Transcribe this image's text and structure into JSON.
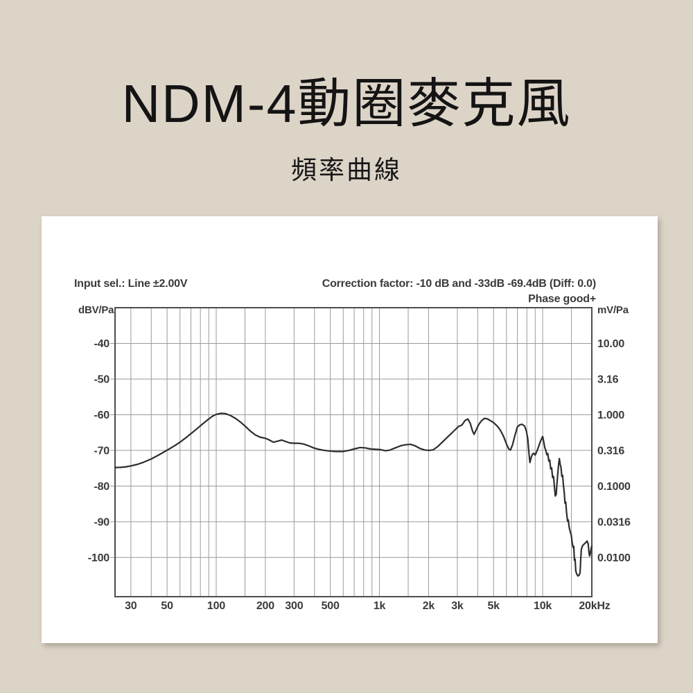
{
  "page": {
    "title": "NDM-4動圈麥克風",
    "subtitle": "頻率曲線",
    "background_color": "#ddd4c8",
    "card_background": "#ffffff"
  },
  "chart_data": {
    "type": "line",
    "header": {
      "input_sel": "Input sel.: Line ±2.00V",
      "correction": "Correction factor: -10 dB  and -33dB -69.4dB (Diff: 0.0)",
      "phase": "Phase good+"
    },
    "x_axis": {
      "scale": "log",
      "range_hz": [
        24,
        20000
      ],
      "gridlines_hz": [
        30,
        40,
        50,
        60,
        70,
        80,
        90,
        100,
        150,
        200,
        300,
        400,
        500,
        600,
        700,
        800,
        900,
        1000,
        1500,
        2000,
        3000,
        4000,
        5000,
        6000,
        7000,
        8000,
        9000,
        10000,
        15000
      ],
      "ticks": [
        {
          "f": 30,
          "label": "30"
        },
        {
          "f": 50,
          "label": "50"
        },
        {
          "f": 100,
          "label": "100"
        },
        {
          "f": 200,
          "label": "200"
        },
        {
          "f": 300,
          "label": "300"
        },
        {
          "f": 500,
          "label": "500"
        },
        {
          "f": 1000,
          "label": "1k"
        },
        {
          "f": 2000,
          "label": "2k"
        },
        {
          "f": 3000,
          "label": "3k"
        },
        {
          "f": 5000,
          "label": "5k"
        },
        {
          "f": 10000,
          "label": "10k"
        },
        {
          "f": 20000,
          "label": "20kHz"
        }
      ]
    },
    "y_axis_left": {
      "label": "dBV/Pa",
      "range_db": [
        -111,
        -30
      ],
      "ticks": [
        {
          "db": -40,
          "label": "-40"
        },
        {
          "db": -50,
          "label": "-50"
        },
        {
          "db": -60,
          "label": "-60"
        },
        {
          "db": -70,
          "label": "-70"
        },
        {
          "db": -80,
          "label": "-80"
        },
        {
          "db": -90,
          "label": "-90"
        },
        {
          "db": -100,
          "label": "-100"
        }
      ]
    },
    "y_axis_right": {
      "label": "mV/Pa",
      "ticks": [
        {
          "db": -40,
          "label": "10.00"
        },
        {
          "db": -50,
          "label": "3.16"
        },
        {
          "db": -60,
          "label": "1.000"
        },
        {
          "db": -70,
          "label": "0.316"
        },
        {
          "db": -80,
          "label": "0.1000"
        },
        {
          "db": -90,
          "label": "0.0316"
        },
        {
          "db": -100,
          "label": "0.0100"
        }
      ]
    },
    "grid_color": "#9a9a9a",
    "border_color": "#4d4d4d",
    "text_color": "#3a3a3a",
    "series": [
      {
        "name": "frequency-response",
        "color": "#2d2d2d",
        "points_hz_db": [
          [
            24,
            -74.8
          ],
          [
            26,
            -74.75
          ],
          [
            28,
            -74.6
          ],
          [
            30,
            -74.35
          ],
          [
            33,
            -73.9
          ],
          [
            36,
            -73.3
          ],
          [
            40,
            -72.4
          ],
          [
            44,
            -71.4
          ],
          [
            48,
            -70.4
          ],
          [
            52,
            -69.5
          ],
          [
            56,
            -68.6
          ],
          [
            60,
            -67.7
          ],
          [
            65,
            -66.5
          ],
          [
            70,
            -65.3
          ],
          [
            75,
            -64.2
          ],
          [
            80,
            -63.1
          ],
          [
            85,
            -62.1
          ],
          [
            90,
            -61.2
          ],
          [
            95,
            -60.4
          ],
          [
            100,
            -59.9
          ],
          [
            107,
            -59.6
          ],
          [
            114,
            -59.7
          ],
          [
            122,
            -60.2
          ],
          [
            132,
            -61.1
          ],
          [
            142,
            -62.2
          ],
          [
            152,
            -63.4
          ],
          [
            163,
            -64.7
          ],
          [
            174,
            -65.7
          ],
          [
            186,
            -66.3
          ],
          [
            200,
            -66.6
          ],
          [
            212,
            -67.1
          ],
          [
            224,
            -67.7
          ],
          [
            238,
            -67.4
          ],
          [
            252,
            -67.1
          ],
          [
            266,
            -67.5
          ],
          [
            282,
            -67.9
          ],
          [
            300,
            -68.0
          ],
          [
            320,
            -68.0
          ],
          [
            342,
            -68.2
          ],
          [
            368,
            -68.7
          ],
          [
            395,
            -69.3
          ],
          [
            425,
            -69.7
          ],
          [
            460,
            -70.0
          ],
          [
            500,
            -70.2
          ],
          [
            545,
            -70.3
          ],
          [
            600,
            -70.3
          ],
          [
            650,
            -70.0
          ],
          [
            700,
            -69.6
          ],
          [
            760,
            -69.2
          ],
          [
            820,
            -69.3
          ],
          [
            880,
            -69.6
          ],
          [
            950,
            -69.7
          ],
          [
            1020,
            -69.8
          ],
          [
            1090,
            -70.1
          ],
          [
            1160,
            -69.9
          ],
          [
            1250,
            -69.3
          ],
          [
            1350,
            -68.7
          ],
          [
            1450,
            -68.4
          ],
          [
            1550,
            -68.3
          ],
          [
            1650,
            -68.7
          ],
          [
            1780,
            -69.5
          ],
          [
            1900,
            -69.9
          ],
          [
            2020,
            -70.0
          ],
          [
            2140,
            -69.8
          ],
          [
            2280,
            -68.9
          ],
          [
            2450,
            -67.5
          ],
          [
            2650,
            -66.0
          ],
          [
            2850,
            -64.6
          ],
          [
            3050,
            -63.3
          ],
          [
            3200,
            -62.9
          ],
          [
            3350,
            -61.6
          ],
          [
            3480,
            -61.2
          ],
          [
            3600,
            -62.4
          ],
          [
            3720,
            -64.6
          ],
          [
            3800,
            -65.5
          ],
          [
            3900,
            -64.4
          ],
          [
            4050,
            -62.8
          ],
          [
            4200,
            -61.8
          ],
          [
            4400,
            -61.0
          ],
          [
            4600,
            -61.2
          ],
          [
            4800,
            -61.7
          ],
          [
            5000,
            -62.2
          ],
          [
            5250,
            -63.1
          ],
          [
            5500,
            -64.3
          ],
          [
            5750,
            -66.0
          ],
          [
            6000,
            -68.2
          ],
          [
            6200,
            -69.6
          ],
          [
            6350,
            -69.9
          ],
          [
            6550,
            -68.3
          ],
          [
            6750,
            -65.9
          ],
          [
            7000,
            -63.4
          ],
          [
            7250,
            -62.8
          ],
          [
            7500,
            -62.7
          ],
          [
            7750,
            -63.2
          ],
          [
            7950,
            -64.6
          ],
          [
            8100,
            -66.7
          ],
          [
            8250,
            -71.0
          ],
          [
            8350,
            -73.4
          ],
          [
            8500,
            -72.0
          ],
          [
            8650,
            -71.1
          ],
          [
            8800,
            -70.8
          ],
          [
            9000,
            -71.3
          ],
          [
            9200,
            -70.3
          ],
          [
            9450,
            -68.9
          ],
          [
            9700,
            -67.4
          ],
          [
            10000,
            -66.1
          ],
          [
            10150,
            -67.6
          ],
          [
            10300,
            -69.2
          ],
          [
            10450,
            -70.0
          ],
          [
            10600,
            -71.2
          ],
          [
            10750,
            -70.9
          ],
          [
            10900,
            -73.0
          ],
          [
            11050,
            -72.7
          ],
          [
            11200,
            -75.2
          ],
          [
            11350,
            -74.9
          ],
          [
            11500,
            -77.6
          ],
          [
            11650,
            -77.3
          ],
          [
            11800,
            -80.2
          ],
          [
            11950,
            -82.8
          ],
          [
            12100,
            -82.3
          ],
          [
            12200,
            -80.0
          ],
          [
            12350,
            -77.0
          ],
          [
            12500,
            -74.2
          ],
          [
            12650,
            -72.3
          ],
          [
            12800,
            -73.9
          ],
          [
            12950,
            -74.8
          ],
          [
            13100,
            -77.3
          ],
          [
            13250,
            -77.0
          ],
          [
            13400,
            -79.8
          ],
          [
            13550,
            -81.7
          ],
          [
            13700,
            -84.8
          ],
          [
            13850,
            -84.5
          ],
          [
            14000,
            -87.3
          ],
          [
            14200,
            -89.8
          ],
          [
            14350,
            -89.5
          ],
          [
            14550,
            -91.7
          ],
          [
            14750,
            -92.8
          ],
          [
            14950,
            -93.6
          ],
          [
            15150,
            -95.8
          ],
          [
            15350,
            -97.2
          ],
          [
            15500,
            -96.9
          ],
          [
            15650,
            -100.8
          ],
          [
            15800,
            -100.5
          ],
          [
            15950,
            -103.8
          ],
          [
            16150,
            -104.6
          ],
          [
            16450,
            -105.2
          ],
          [
            16750,
            -104.9
          ],
          [
            16950,
            -104.3
          ],
          [
            17100,
            -100.6
          ],
          [
            17250,
            -97.8
          ],
          [
            17500,
            -96.8
          ],
          [
            17900,
            -96.3
          ],
          [
            18300,
            -95.9
          ],
          [
            18700,
            -95.4
          ],
          [
            19000,
            -96.2
          ],
          [
            19250,
            -98.9
          ],
          [
            19400,
            -99.6
          ],
          [
            19600,
            -98.7
          ],
          [
            19800,
            -97.6
          ],
          [
            20000,
            -96.8
          ]
        ]
      }
    ]
  }
}
